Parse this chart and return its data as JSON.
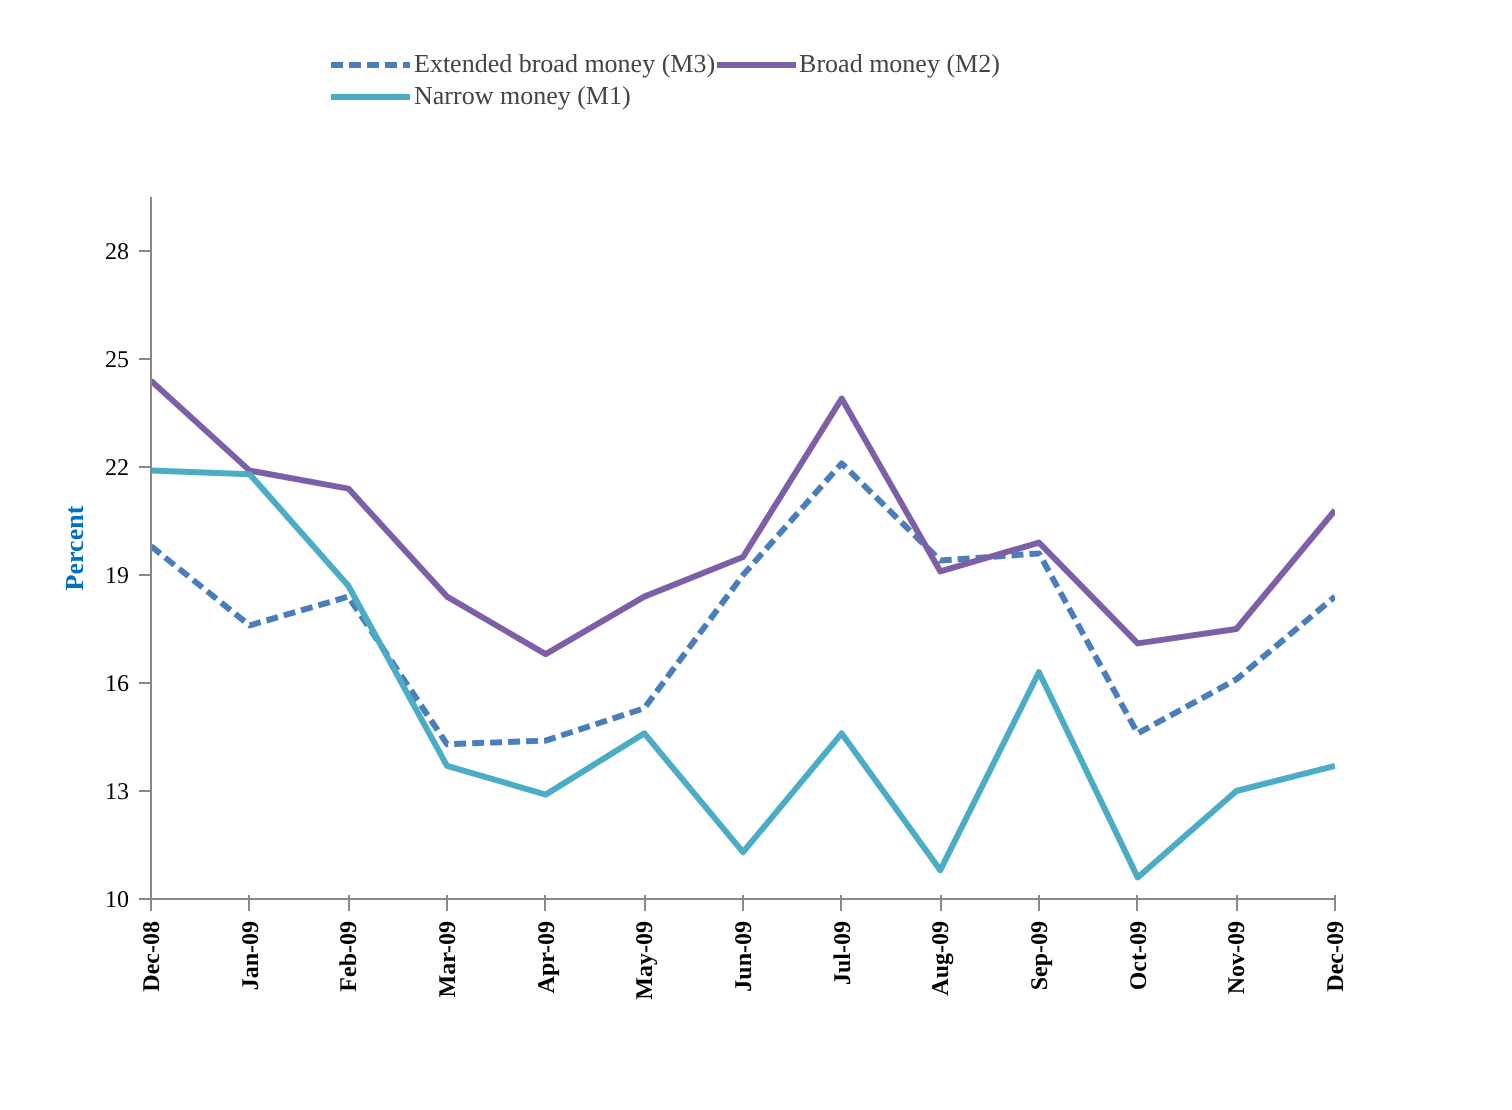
{
  "chart_data": {
    "type": "line",
    "ylabel": "Percent",
    "categories": [
      "Dec-08",
      "Jan-09",
      "Feb-09",
      "Mar-09",
      "Apr-09",
      "May-09",
      "Jun-09",
      "Jul-09",
      "Aug-09",
      "Sep-09",
      "Oct-09",
      "Nov-09",
      "Dec-09"
    ],
    "series": [
      {
        "name": "Extended broad money (M3)",
        "color": "#4a7ebb",
        "line_style": "dashed",
        "values": [
          19.8,
          17.6,
          18.4,
          14.3,
          14.4,
          15.3,
          19.0,
          22.1,
          19.4,
          19.6,
          14.6,
          16.1,
          18.4
        ]
      },
      {
        "name": "Broad money (M2)",
        "color": "#7d5fa8",
        "line_style": "solid",
        "values": [
          24.4,
          21.9,
          21.4,
          18.4,
          16.8,
          18.4,
          19.5,
          23.9,
          19.1,
          19.9,
          17.1,
          17.5,
          20.8
        ]
      },
      {
        "name": "Narrow money (M1)",
        "color": "#4bacc6",
        "line_style": "solid",
        "values": [
          21.9,
          21.8,
          18.7,
          13.7,
          12.9,
          14.6,
          11.3,
          14.6,
          10.8,
          16.3,
          10.6,
          13.0,
          13.7
        ]
      }
    ],
    "ylim": [
      10,
      29.5
    ],
    "yticks": [
      10,
      13,
      16,
      19,
      22,
      25,
      28
    ],
    "grid": false,
    "legend": "top",
    "marker": "none"
  }
}
